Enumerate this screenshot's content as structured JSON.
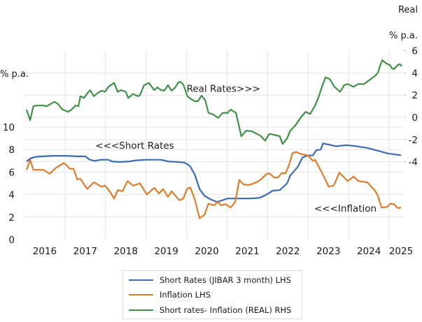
{
  "chart_data": {
    "type": "line",
    "title": "",
    "left_axis": {
      "unit_label": "% p.a.",
      "ticks": [
        "0",
        "2",
        "4",
        "6",
        "8",
        "10"
      ],
      "tick_values": [
        0,
        2,
        4,
        6,
        8,
        10
      ],
      "ylim": [
        0,
        10
      ]
    },
    "right_axis": {
      "title": "Real",
      "unit_label": "% p.a.",
      "ticks": [
        "-4",
        "-2",
        "0",
        "2",
        "4",
        "6"
      ],
      "tick_values": [
        -4,
        -2,
        0,
        2,
        4,
        6
      ],
      "ylim": [
        -4,
        6
      ]
    },
    "x_axis": {
      "tick_labels": [
        "2016",
        "2017",
        "2018",
        "2019",
        "2020",
        "2021",
        "2022",
        "2023",
        "2024",
        "2025"
      ],
      "xlim": [
        2016,
        2025.55
      ]
    },
    "grid": true,
    "legend_position": "bottom",
    "annotations": [
      {
        "text": "Real Rates>>>",
        "x": 2020.0,
        "axis": "right",
        "y": 2.6
      },
      {
        "text": "<<<Short Rates",
        "x": 2017.75,
        "axis": "left",
        "y": 8.4
      },
      {
        "text": "<<<Inflation",
        "x": 2023.15,
        "axis": "left",
        "y": 2.8
      }
    ],
    "series": [
      {
        "name": "Short Rates (JIBAR 3 month) LHS",
        "axis": "left",
        "color": "#3a6bb3",
        "points": [
          [
            2016.05,
            6.95
          ],
          [
            2016.14,
            7.2
          ],
          [
            2016.26,
            7.35
          ],
          [
            2016.43,
            7.4
          ],
          [
            2016.69,
            7.45
          ],
          [
            2017.04,
            7.45
          ],
          [
            2017.3,
            7.4
          ],
          [
            2017.5,
            7.4
          ],
          [
            2017.61,
            7.1
          ],
          [
            2017.73,
            7.0
          ],
          [
            2017.9,
            7.1
          ],
          [
            2018.07,
            7.1
          ],
          [
            2018.16,
            6.95
          ],
          [
            2018.33,
            6.9
          ],
          [
            2018.59,
            6.95
          ],
          [
            2018.76,
            7.05
          ],
          [
            2019.02,
            7.1
          ],
          [
            2019.37,
            7.1
          ],
          [
            2019.54,
            6.95
          ],
          [
            2019.8,
            6.9
          ],
          [
            2019.94,
            6.85
          ],
          [
            2020.02,
            6.7
          ],
          [
            2020.09,
            6.5
          ],
          [
            2020.2,
            5.8
          ],
          [
            2020.32,
            4.5
          ],
          [
            2020.44,
            3.9
          ],
          [
            2020.58,
            3.6
          ],
          [
            2020.75,
            3.35
          ],
          [
            2020.89,
            3.5
          ],
          [
            2021.01,
            3.65
          ],
          [
            2021.27,
            3.65
          ],
          [
            2021.53,
            3.65
          ],
          [
            2021.79,
            3.7
          ],
          [
            2021.92,
            3.9
          ],
          [
            2022.13,
            4.35
          ],
          [
            2022.3,
            4.4
          ],
          [
            2022.48,
            5.0
          ],
          [
            2022.56,
            5.7
          ],
          [
            2022.74,
            6.45
          ],
          [
            2022.86,
            7.3
          ],
          [
            2022.96,
            7.45
          ],
          [
            2023.12,
            7.5
          ],
          [
            2023.2,
            7.95
          ],
          [
            2023.31,
            8.0
          ],
          [
            2023.37,
            8.55
          ],
          [
            2023.51,
            8.45
          ],
          [
            2023.69,
            8.3
          ],
          [
            2023.94,
            8.4
          ],
          [
            2024.2,
            8.3
          ],
          [
            2024.46,
            8.15
          ],
          [
            2024.72,
            7.9
          ],
          [
            2024.98,
            7.65
          ],
          [
            2025.29,
            7.5
          ]
        ]
      },
      {
        "name": "Inflation LHS",
        "axis": "left",
        "color": "#e07b2a",
        "points": [
          [
            2016.05,
            6.2
          ],
          [
            2016.14,
            7.1
          ],
          [
            2016.22,
            6.2
          ],
          [
            2016.35,
            6.2
          ],
          [
            2016.47,
            6.2
          ],
          [
            2016.62,
            5.85
          ],
          [
            2016.78,
            6.4
          ],
          [
            2016.97,
            6.8
          ],
          [
            2017.04,
            6.6
          ],
          [
            2017.12,
            6.3
          ],
          [
            2017.21,
            6.3
          ],
          [
            2017.3,
            5.35
          ],
          [
            2017.38,
            5.4
          ],
          [
            2017.55,
            4.5
          ],
          [
            2017.71,
            5.1
          ],
          [
            2017.9,
            4.7
          ],
          [
            2017.99,
            4.8
          ],
          [
            2018.12,
            4.2
          ],
          [
            2018.21,
            3.65
          ],
          [
            2018.3,
            4.4
          ],
          [
            2018.42,
            4.3
          ],
          [
            2018.54,
            5.2
          ],
          [
            2018.68,
            4.8
          ],
          [
            2018.85,
            5.0
          ],
          [
            2019.02,
            4.0
          ],
          [
            2019.2,
            4.6
          ],
          [
            2019.32,
            4.1
          ],
          [
            2019.42,
            4.5
          ],
          [
            2019.54,
            3.8
          ],
          [
            2019.63,
            4.3
          ],
          [
            2019.82,
            3.5
          ],
          [
            2019.92,
            3.65
          ],
          [
            2020.01,
            4.5
          ],
          [
            2020.09,
            4.65
          ],
          [
            2020.2,
            3.6
          ],
          [
            2020.32,
            1.9
          ],
          [
            2020.44,
            2.2
          ],
          [
            2020.54,
            3.2
          ],
          [
            2020.68,
            3.05
          ],
          [
            2020.77,
            3.35
          ],
          [
            2020.85,
            3.05
          ],
          [
            2020.96,
            3.15
          ],
          [
            2021.09,
            2.85
          ],
          [
            2021.2,
            3.35
          ],
          [
            2021.3,
            5.3
          ],
          [
            2021.41,
            4.9
          ],
          [
            2021.53,
            4.85
          ],
          [
            2021.7,
            5.05
          ],
          [
            2021.82,
            5.3
          ],
          [
            2021.96,
            5.8
          ],
          [
            2022.04,
            5.9
          ],
          [
            2022.17,
            5.5
          ],
          [
            2022.27,
            5.55
          ],
          [
            2022.34,
            5.9
          ],
          [
            2022.44,
            5.9
          ],
          [
            2022.53,
            6.65
          ],
          [
            2022.61,
            7.65
          ],
          [
            2022.7,
            7.8
          ],
          [
            2022.82,
            7.6
          ],
          [
            2022.99,
            7.5
          ],
          [
            2023.12,
            7.0
          ],
          [
            2023.17,
            7.1
          ],
          [
            2023.34,
            5.95
          ],
          [
            2023.51,
            4.7
          ],
          [
            2023.63,
            4.8
          ],
          [
            2023.77,
            5.95
          ],
          [
            2023.98,
            5.2
          ],
          [
            2024.12,
            5.6
          ],
          [
            2024.24,
            5.2
          ],
          [
            2024.46,
            5.1
          ],
          [
            2024.64,
            4.4
          ],
          [
            2024.72,
            3.9
          ],
          [
            2024.81,
            2.85
          ],
          [
            2024.95,
            2.9
          ],
          [
            2025.03,
            3.2
          ],
          [
            2025.12,
            3.15
          ],
          [
            2025.21,
            2.8
          ],
          [
            2025.29,
            2.85
          ]
        ]
      },
      {
        "name": "Short rates- Inflation (REAL) RHS",
        "axis": "right",
        "color": "#3f9147",
        "points": [
          [
            2016.05,
            0.7
          ],
          [
            2016.14,
            -0.25
          ],
          [
            2016.22,
            1.0
          ],
          [
            2016.31,
            1.07
          ],
          [
            2016.47,
            1.07
          ],
          [
            2016.55,
            1.0
          ],
          [
            2016.64,
            1.2
          ],
          [
            2016.74,
            1.4
          ],
          [
            2016.83,
            1.2
          ],
          [
            2016.92,
            0.75
          ],
          [
            2017.07,
            0.5
          ],
          [
            2017.16,
            0.7
          ],
          [
            2017.26,
            1.07
          ],
          [
            2017.33,
            1.0
          ],
          [
            2017.38,
            1.9
          ],
          [
            2017.47,
            1.75
          ],
          [
            2017.55,
            2.15
          ],
          [
            2017.62,
            2.45
          ],
          [
            2017.71,
            1.9
          ],
          [
            2017.81,
            2.2
          ],
          [
            2017.9,
            2.4
          ],
          [
            2017.99,
            2.3
          ],
          [
            2018.07,
            2.75
          ],
          [
            2018.21,
            3.1
          ],
          [
            2018.3,
            2.3
          ],
          [
            2018.38,
            2.45
          ],
          [
            2018.5,
            2.3
          ],
          [
            2018.56,
            1.75
          ],
          [
            2018.68,
            2.1
          ],
          [
            2018.8,
            1.9
          ],
          [
            2018.85,
            2.0
          ],
          [
            2018.95,
            2.9
          ],
          [
            2019.07,
            3.1
          ],
          [
            2019.2,
            2.45
          ],
          [
            2019.28,
            2.7
          ],
          [
            2019.37,
            2.45
          ],
          [
            2019.45,
            2.4
          ],
          [
            2019.54,
            2.9
          ],
          [
            2019.63,
            2.4
          ],
          [
            2019.71,
            2.65
          ],
          [
            2019.8,
            3.15
          ],
          [
            2019.85,
            3.2
          ],
          [
            2019.92,
            2.95
          ],
          [
            2020.02,
            1.9
          ],
          [
            2020.09,
            1.7
          ],
          [
            2020.2,
            1.45
          ],
          [
            2020.28,
            1.45
          ],
          [
            2020.37,
            1.95
          ],
          [
            2020.46,
            1.55
          ],
          [
            2020.54,
            0.4
          ],
          [
            2020.66,
            0.25
          ],
          [
            2020.78,
            -0.05
          ],
          [
            2020.89,
            0.4
          ],
          [
            2021.01,
            0.4
          ],
          [
            2021.09,
            0.7
          ],
          [
            2021.22,
            0.4
          ],
          [
            2021.35,
            -1.7
          ],
          [
            2021.47,
            -1.2
          ],
          [
            2021.61,
            -1.25
          ],
          [
            2021.82,
            -1.65
          ],
          [
            2021.94,
            -2.1
          ],
          [
            2022.04,
            -1.5
          ],
          [
            2022.13,
            -1.55
          ],
          [
            2022.3,
            -1.7
          ],
          [
            2022.37,
            -2.4
          ],
          [
            2022.48,
            -1.9
          ],
          [
            2022.56,
            -1.2
          ],
          [
            2022.68,
            -0.75
          ],
          [
            2022.82,
            0.0
          ],
          [
            2022.94,
            0.5
          ],
          [
            2023.05,
            0.3
          ],
          [
            2023.17,
            1.05
          ],
          [
            2023.25,
            1.75
          ],
          [
            2023.34,
            2.75
          ],
          [
            2023.43,
            3.6
          ],
          [
            2023.53,
            3.45
          ],
          [
            2023.65,
            2.75
          ],
          [
            2023.79,
            2.3
          ],
          [
            2023.89,
            2.9
          ],
          [
            2023.98,
            3.0
          ],
          [
            2024.12,
            2.75
          ],
          [
            2024.24,
            3.0
          ],
          [
            2024.38,
            3.0
          ],
          [
            2024.51,
            3.35
          ],
          [
            2024.64,
            3.7
          ],
          [
            2024.72,
            4.0
          ],
          [
            2024.77,
            4.6
          ],
          [
            2024.83,
            5.15
          ],
          [
            2024.93,
            4.85
          ],
          [
            2025.02,
            4.7
          ],
          [
            2025.07,
            4.4
          ],
          [
            2025.12,
            4.35
          ],
          [
            2025.21,
            4.7
          ],
          [
            2025.26,
            4.8
          ],
          [
            2025.31,
            4.6
          ]
        ]
      }
    ]
  }
}
